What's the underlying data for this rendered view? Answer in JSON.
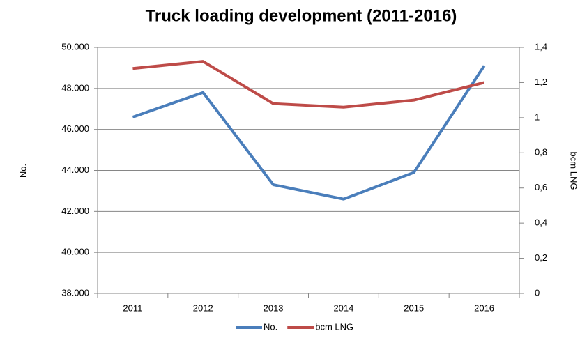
{
  "chart_data": {
    "type": "line",
    "title": "Truck loading development (2011-2016)",
    "y_label": "No.",
    "y2_label": "bcm LNG",
    "categories": [
      "2011",
      "2012",
      "2013",
      "2014",
      "2015",
      "2016"
    ],
    "series": [
      {
        "name": "No.",
        "color": "#4a7ebb",
        "values": [
          46600,
          47800,
          43300,
          42600,
          43900,
          49100
        ]
      },
      {
        "name": "bcm LNG",
        "color": "#be4b48",
        "axis": "y2",
        "values": [
          1.28,
          1.32,
          1.08,
          1.06,
          1.1,
          1.2
        ]
      }
    ],
    "ylim": [
      38000,
      50000
    ],
    "yticks": [
      {
        "value": 38000,
        "label": "38.000"
      },
      {
        "value": 40000,
        "label": "40.000"
      },
      {
        "value": 42000,
        "label": "42.000"
      },
      {
        "value": 44000,
        "label": "44.000"
      },
      {
        "value": 46000,
        "label": "46.000"
      },
      {
        "value": 48000,
        "label": "48.000"
      },
      {
        "value": 50000,
        "label": "50.000"
      }
    ],
    "y2lim": [
      0,
      1.4
    ],
    "y2ticks": [
      0,
      {
        "value": 0.2,
        "label": "0,2"
      },
      {
        "value": 0.4,
        "label": "0,4"
      },
      {
        "value": 0.6,
        "label": "0,6"
      },
      {
        "value": 0.8,
        "label": "0,8"
      },
      1,
      {
        "value": 1.2,
        "label": "1,2"
      },
      {
        "value": 1.4,
        "label": "1,4"
      }
    ],
    "grid": true,
    "legend": "bottom"
  }
}
